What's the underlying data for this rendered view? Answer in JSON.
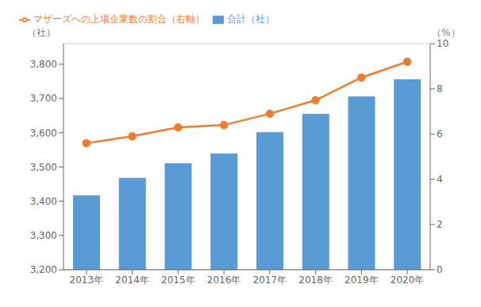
{
  "chart_data": {
    "type": "bar",
    "categories": [
      "2013年",
      "2014年",
      "2015年",
      "2016年",
      "2017年",
      "2018年",
      "2019年",
      "2020年"
    ],
    "series": [
      {
        "name": "合計（社）",
        "type": "bar",
        "color": "#5B9BD5",
        "values": [
          3417,
          3468,
          3511,
          3539,
          3602,
          3655,
          3706,
          3756
        ]
      },
      {
        "name": "マザーズへの上場企業数の割合（右軸）",
        "type": "line",
        "color": "#ED7D31",
        "marker": "circle",
        "axis": "y2",
        "values": [
          5.6,
          5.9,
          6.3,
          6.4,
          6.9,
          7.5,
          8.5,
          9.2
        ]
      }
    ],
    "ylim": [
      3200,
      3860
    ],
    "yticks": [
      {
        "value": 3200,
        "label": "3,200"
      },
      {
        "value": 3300,
        "label": "3,300"
      },
      {
        "value": 3400,
        "label": "3,400"
      },
      {
        "value": 3500,
        "label": "3,500"
      },
      {
        "value": 3600,
        "label": "3,600"
      },
      {
        "value": 3700,
        "label": "3,700"
      },
      {
        "value": 3800,
        "label": "3,800"
      }
    ],
    "y2lim": [
      0,
      10
    ],
    "y2ticks": [
      0,
      2,
      4,
      6,
      8,
      10
    ],
    "ylabel": "（社）",
    "y2label": "（%）",
    "grid": true,
    "legend": "upper left"
  }
}
